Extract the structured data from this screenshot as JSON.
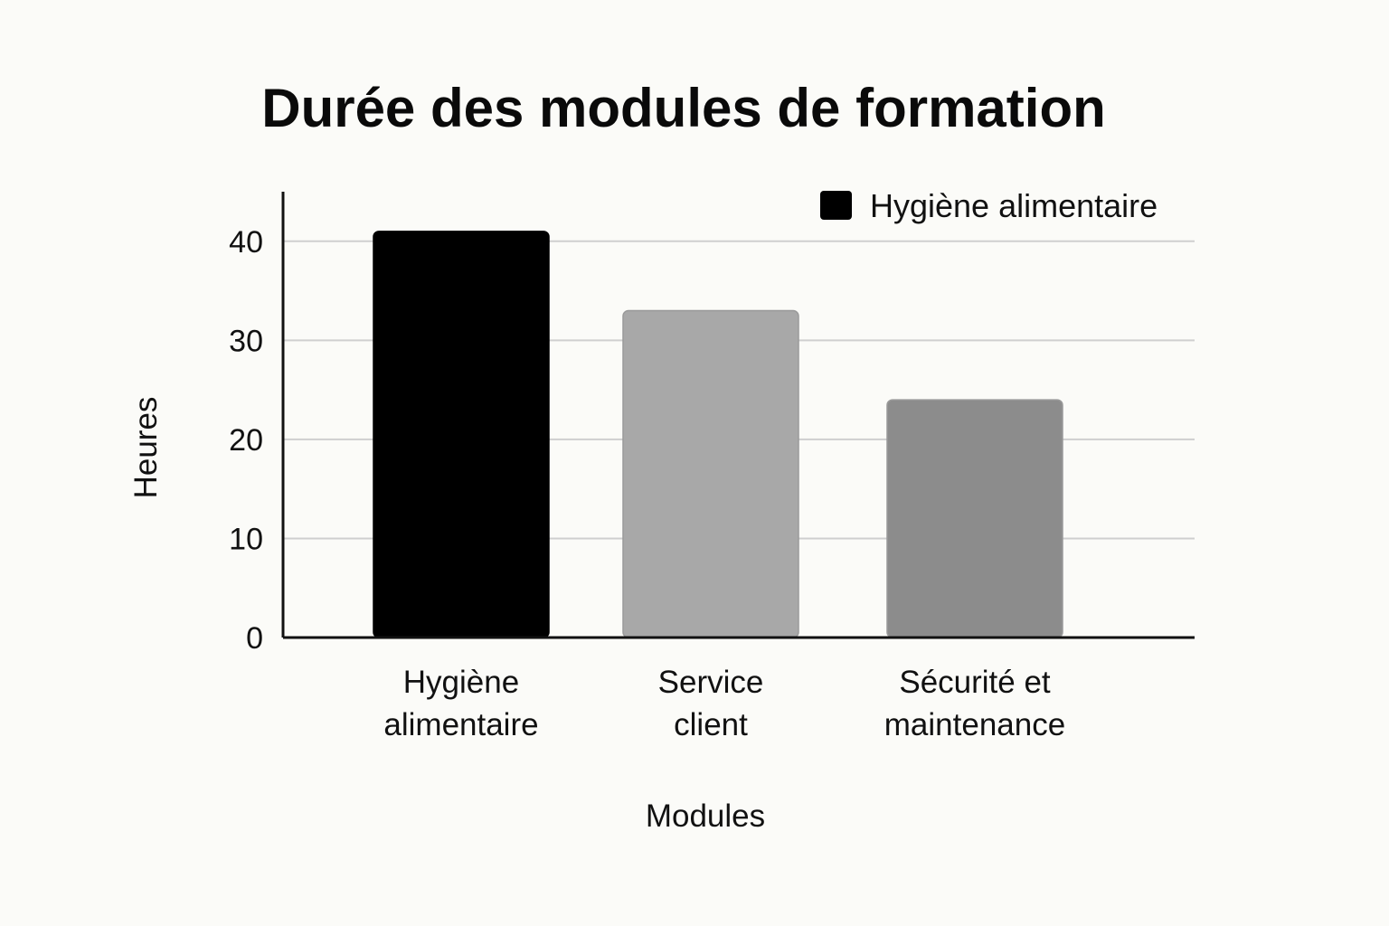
{
  "chart_data": {
    "type": "bar",
    "title": "Durée des modules de formation",
    "xlabel": "Modules",
    "ylabel": "Heures",
    "categories": [
      [
        "Hygiène",
        "alimentaire"
      ],
      [
        "Service",
        "client"
      ],
      [
        "Sécurité et",
        "maintenance"
      ]
    ],
    "values": [
      41,
      33,
      24
    ],
    "bar_colors": [
      "#000000",
      "#a8a8a8",
      "#8c8c8c"
    ],
    "ylim": [
      0,
      45
    ],
    "yticks": [
      0,
      10,
      20,
      30,
      40
    ],
    "grid": true,
    "legend": {
      "position": "top-right",
      "entries": [
        {
          "label": "Hygiène alimentaire",
          "color": "#000000"
        }
      ]
    }
  }
}
